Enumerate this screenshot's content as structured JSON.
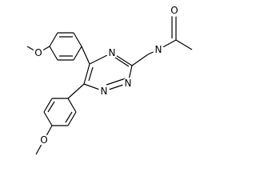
{
  "atoms": [
    "O",
    "N",
    "N",
    "N",
    "N",
    "O",
    "O"
  ]
}
